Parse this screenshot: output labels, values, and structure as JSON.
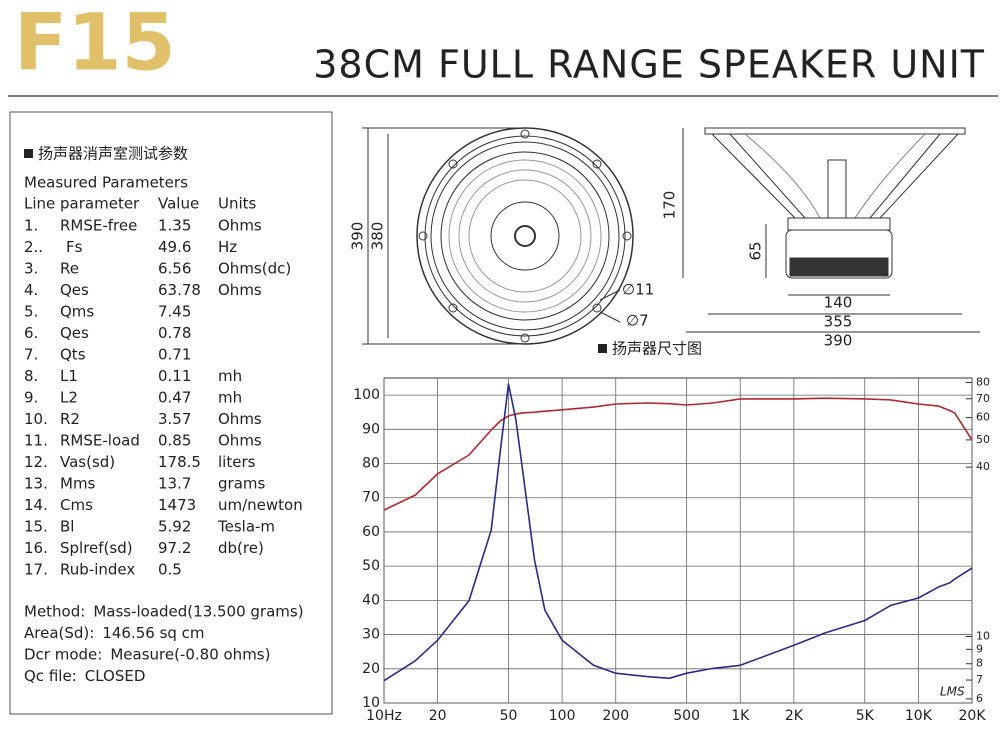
{
  "header": {
    "model": "F15",
    "title": "38CM FULL RANGE SPEAKER UNIT"
  },
  "params": {
    "title": "扬声器消声室测试参数",
    "subtitle": "Measured Parameters",
    "columns": [
      "Line parameter",
      "Value",
      "Units"
    ],
    "rows": [
      [
        "1.",
        "RMSE-free",
        1.35,
        "Ohms"
      ],
      [
        "2..",
        "Fs",
        49.6,
        "Hz"
      ],
      [
        "3.",
        "Re",
        6.56,
        "Ohms(dc)"
      ],
      [
        "4.",
        "Qes",
        63.78,
        "Ohms"
      ],
      [
        "5.",
        "Qms",
        7.45,
        ""
      ],
      [
        "6.",
        "Qes",
        0.78,
        ""
      ],
      [
        "7.",
        "Qts",
        0.71,
        ""
      ],
      [
        "8.",
        "L1",
        0.11,
        "mh"
      ],
      [
        "9.",
        "L2",
        0.47,
        "mh"
      ],
      [
        "10.",
        "R2",
        3.57,
        "Ohms"
      ],
      [
        "11.",
        "RMSE-load",
        0.85,
        "Ohms"
      ],
      [
        "12.",
        "Vas(sd)",
        178.5,
        "liters"
      ],
      [
        "13.",
        "Mms",
        13.7,
        "grams"
      ],
      [
        "14.",
        "Cms",
        1473,
        "um/newton"
      ],
      [
        "15.",
        "Bl",
        5.92,
        "Tesla-m"
      ],
      [
        "16.",
        "Splref(sd)",
        97.2,
        "db(re)"
      ],
      [
        "17.",
        "Rub-index",
        0.5,
        ""
      ]
    ],
    "notes": [
      [
        "Method:",
        "Mass-loaded(13.500 grams)"
      ],
      [
        "Area(Sd):",
        "146.56 sq cm"
      ],
      [
        "Dcr mode:",
        "Measure(-0.80 ohms)"
      ],
      [
        "Qc file:",
        "CLOSED"
      ]
    ]
  },
  "drawing": {
    "caption": "扬声器尺寸图",
    "front": [
      "390",
      "380",
      "∅11",
      "∅7"
    ],
    "side": [
      "170",
      "65",
      "140",
      "355",
      "390"
    ]
  },
  "chart_data": {
    "type": "line",
    "annotation": "LMS",
    "x_scale": "log",
    "y2_scale": "log",
    "grid": true,
    "x": [
      10,
      15,
      20,
      30,
      40,
      45,
      50,
      55,
      60,
      70,
      80,
      100,
      150,
      200,
      300,
      400,
      500,
      700,
      1000,
      2000,
      3000,
      5000,
      7000,
      10000,
      13000,
      15000,
      16000,
      20000
    ],
    "xlim": [
      10,
      20000
    ],
    "xticks": [
      {
        "value": 10,
        "label": "10Hz"
      },
      20,
      50,
      100,
      200,
      500,
      {
        "value": 1000,
        "label": "1K"
      },
      {
        "value": 2000,
        "label": "2K"
      },
      {
        "value": 5000,
        "label": "5K"
      },
      {
        "value": 10000,
        "label": "10K"
      },
      {
        "value": 20000,
        "label": "20K"
      }
    ],
    "ylim": [
      10,
      105
    ],
    "yticks": [
      10,
      20,
      30,
      40,
      50,
      60,
      70,
      80,
      90,
      100
    ],
    "y2lim": [
      5.8,
      83
    ],
    "y2ticks": [
      6,
      7,
      8,
      9,
      10,
      40,
      50,
      60,
      70,
      80
    ],
    "series": [
      {
        "color": "#b3282d",
        "axis": "y",
        "values": [
          66.4,
          70.8,
          77,
          82.5,
          89.8,
          92.5,
          93.9,
          94.5,
          94.8,
          95,
          95.3,
          95.7,
          96.5,
          97.4,
          97.7,
          97.5,
          97.1,
          97.7,
          98.9,
          98.9,
          99.1,
          98.9,
          98.6,
          97.4,
          96.8,
          95.5,
          94.8,
          86.9
        ]
      },
      {
        "color": "#2b2b86",
        "axis": "y2",
        "values": [
          6.96,
          8.2,
          9.7,
          13.4,
          23.9,
          46,
          79,
          59,
          39,
          18.7,
          12.4,
          9.7,
          7.9,
          7.4,
          7.2,
          7.1,
          7.4,
          7.7,
          7.9,
          9.3,
          10.3,
          11.4,
          12.9,
          13.7,
          15,
          15.5,
          16,
          17.5
        ]
      }
    ]
  }
}
